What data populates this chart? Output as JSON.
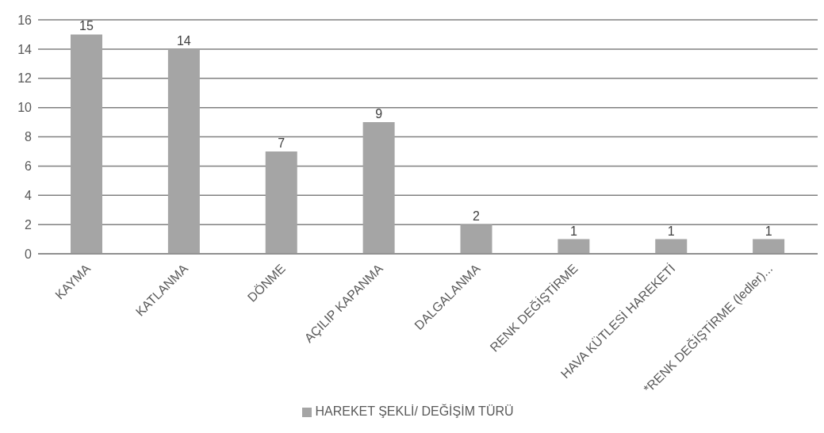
{
  "chart_data": {
    "type": "bar",
    "categories": [
      "KAYMA",
      "KATLANMA",
      "DÖNME",
      "AÇILIP KAPANMA",
      "DALGALANMA",
      "RENK DEĞİŞTİRME",
      "HAVA KÜTLESİ HAREKETİ",
      "*RENK DEĞİŞTİRME (ledler)..."
    ],
    "series": [
      {
        "name": "HAREKET ŞEKLİ/ DEĞİŞİM TÜRÜ",
        "color": "#a5a5a5",
        "values": [
          15,
          14,
          7,
          9,
          2,
          1,
          1,
          1
        ]
      }
    ],
    "ylim": [
      0,
      16
    ],
    "yticks": [
      0,
      2,
      4,
      6,
      8,
      10,
      12,
      14,
      16
    ],
    "grid": "y",
    "legend": "bottom",
    "data_labels": true
  }
}
